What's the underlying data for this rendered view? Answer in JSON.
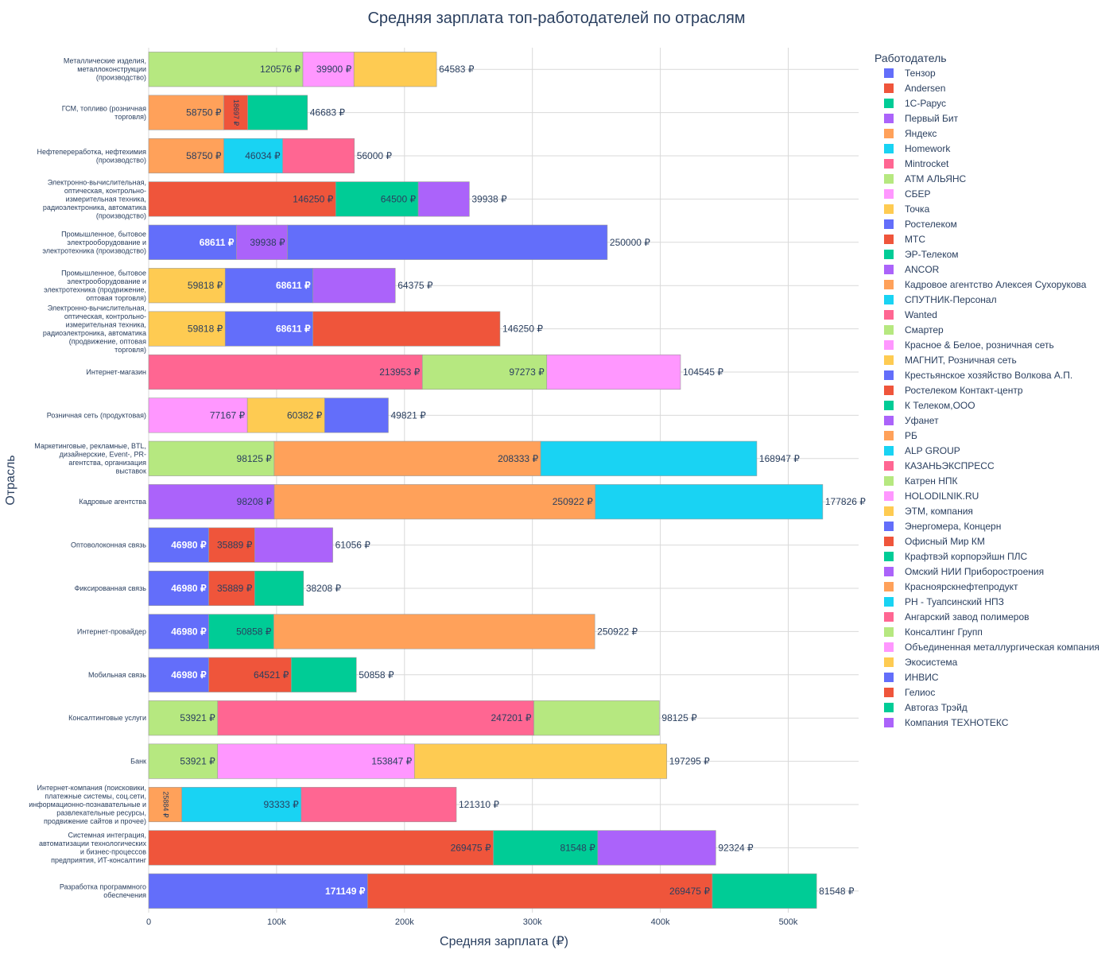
{
  "chart_data": {
    "type": "bar",
    "orientation": "horizontal",
    "barmode": "stack",
    "title": "Средняя зарплата топ-работодателей по отраслям",
    "xlabel": "Средняя зарплата (₽)",
    "ylabel": "Отрасль",
    "xlim": [
      0,
      555000
    ],
    "x_ticks": [
      {
        "value": 0,
        "label": "0"
      },
      {
        "value": 100000,
        "label": "100k"
      },
      {
        "value": 200000,
        "label": "200k"
      },
      {
        "value": 300000,
        "label": "300k"
      },
      {
        "value": 400000,
        "label": "400k"
      },
      {
        "value": 500000,
        "label": "500k"
      }
    ],
    "grid": true,
    "legend_title": "Работодатель",
    "legend_position": "right",
    "currency_suffix": " ₽",
    "employers": [
      {
        "name": "Тензор",
        "color": "#636efa"
      },
      {
        "name": "Andersen",
        "color": "#EF553B"
      },
      {
        "name": "1С-Рарус",
        "color": "#00cc96"
      },
      {
        "name": "Первый Бит",
        "color": "#ab63fa"
      },
      {
        "name": "Яндекс",
        "color": "#FFA15A"
      },
      {
        "name": "Homework",
        "color": "#19d3f3"
      },
      {
        "name": "Mintrocket",
        "color": "#FF6692"
      },
      {
        "name": "АТМ АЛЬЯНС",
        "color": "#B6E880"
      },
      {
        "name": "СБЕР",
        "color": "#FF97FF"
      },
      {
        "name": "Точка",
        "color": "#FECB52"
      },
      {
        "name": "Ростелеком",
        "color": "#636efa"
      },
      {
        "name": "МТС",
        "color": "#EF553B"
      },
      {
        "name": "ЭР-Телеком",
        "color": "#00cc96"
      },
      {
        "name": "ANCOR",
        "color": "#ab63fa"
      },
      {
        "name": "Кадровое агентство Алексея Сухорукова",
        "color": "#FFA15A"
      },
      {
        "name": "СПУТНИК-Персонал",
        "color": "#19d3f3"
      },
      {
        "name": "Wanted",
        "color": "#FF6692"
      },
      {
        "name": "Смартер",
        "color": "#B6E880"
      },
      {
        "name": "Красное & Белое, розничная сеть",
        "color": "#FF97FF"
      },
      {
        "name": "МАГНИТ, Розничная сеть",
        "color": "#FECB52"
      },
      {
        "name": "Крестьянское хозяйство Волкова А.П.",
        "color": "#636efa"
      },
      {
        "name": "Ростелеком Контакт-центр",
        "color": "#EF553B"
      },
      {
        "name": "К Телеком,ООО",
        "color": "#00cc96"
      },
      {
        "name": "Уфанет",
        "color": "#ab63fa"
      },
      {
        "name": "РБ",
        "color": "#FFA15A"
      },
      {
        "name": "ALP GROUP",
        "color": "#19d3f3"
      },
      {
        "name": "КАЗАНЬЭКСПРЕСС",
        "color": "#FF6692"
      },
      {
        "name": "Катрен НПК",
        "color": "#B6E880"
      },
      {
        "name": "HOLODILNIK.RU",
        "color": "#FF97FF"
      },
      {
        "name": "ЭТМ, компания",
        "color": "#FECB52"
      },
      {
        "name": "Энергомера, Концерн",
        "color": "#636efa"
      },
      {
        "name": "Офисный Мир КМ",
        "color": "#EF553B"
      },
      {
        "name": "Крафтвэй корпорэйшн ПЛС",
        "color": "#00cc96"
      },
      {
        "name": "Омский НИИ Приборостроения",
        "color": "#ab63fa"
      },
      {
        "name": "Красноярскнефтепродукт",
        "color": "#FFA15A"
      },
      {
        "name": "РН - Туапсинский НПЗ",
        "color": "#19d3f3"
      },
      {
        "name": "Ангарский завод полимеров",
        "color": "#FF6692"
      },
      {
        "name": "Консалтинг Групп",
        "color": "#B6E880"
      },
      {
        "name": "Объединенная металлургическая компания",
        "color": "#FF97FF"
      },
      {
        "name": "Экосистема",
        "color": "#FECB52"
      },
      {
        "name": "ИНВИС",
        "color": "#636efa"
      },
      {
        "name": "Гелиос",
        "color": "#EF553B"
      },
      {
        "name": "Автогаз Трэйд",
        "color": "#00cc96"
      },
      {
        "name": "Компания ТЕХНОТЕКС",
        "color": "#ab63fa"
      }
    ],
    "categories": [
      {
        "label": [
          "Металлические изделия,",
          "металлоконструкции",
          "(производство)"
        ],
        "segments": [
          {
            "employer": "Консалтинг Групп",
            "value": 120576
          },
          {
            "employer": "Объединенная металлургическая компания",
            "value": 39900
          },
          {
            "employer": "Экосистема",
            "value": 64583
          }
        ]
      },
      {
        "label": [
          "ГСМ, топливо (розничная",
          "торговля)"
        ],
        "segments": [
          {
            "employer": "Красноярскнефтепродукт",
            "value": 58750
          },
          {
            "employer": "Гелиос",
            "value": 18697
          },
          {
            "employer": "Автогаз Трэйд",
            "value": 46683
          }
        ]
      },
      {
        "label": [
          "Нефтепереработка, нефтехимия",
          "(производство)"
        ],
        "segments": [
          {
            "employer": "Красноярскнефтепродукт",
            "value": 58750
          },
          {
            "employer": "РН - Туапсинский НПЗ",
            "value": 46034
          },
          {
            "employer": "Ангарский завод полимеров",
            "value": 56000
          }
        ]
      },
      {
        "label": [
          "Электронно-вычислительная,",
          "оптическая, контрольно-",
          "измерительная техника,",
          "радиоэлектроника, автоматика",
          "(производство)"
        ],
        "segments": [
          {
            "employer": "Офисный Мир КМ",
            "value": 146250
          },
          {
            "employer": "Крафтвэй корпорэйшн ПЛС",
            "value": 64500
          },
          {
            "employer": "Омский НИИ Приборостроения",
            "value": 39938
          }
        ]
      },
      {
        "label": [
          "Промышленное, бытовое",
          "электрооборудование и",
          "электротехника (производство)"
        ],
        "segments": [
          {
            "employer": "Энергомера, Концерн",
            "value": 68611
          },
          {
            "employer": "Омский НИИ Приборостроения",
            "value": 39938
          },
          {
            "employer": "ИНВИС",
            "value": 250000
          }
        ]
      },
      {
        "label": [
          "Промышленное, бытовое",
          "электрооборудование и",
          "электротехника (продвижение,",
          "оптовая торговля)"
        ],
        "segments": [
          {
            "employer": "ЭТМ, компания",
            "value": 59818
          },
          {
            "employer": "Энергомера, Концерн",
            "value": 68611
          },
          {
            "employer": "Компания ТЕХНОТЕКС",
            "value": 64375
          }
        ]
      },
      {
        "label": [
          "Электронно-вычислительная,",
          "оптическая, контрольно-",
          "измерительная техника,",
          "радиоэлектроника, автоматика",
          "(продвижение, оптовая",
          "торговля)"
        ],
        "segments": [
          {
            "employer": "ЭТМ, компания",
            "value": 59818
          },
          {
            "employer": "Энергомера, Концерн",
            "value": 68611
          },
          {
            "employer": "Офисный Мир КМ",
            "value": 146250
          }
        ]
      },
      {
        "label": [
          "Интернет-магазин"
        ],
        "segments": [
          {
            "employer": "КАЗАНЬЭКСПРЕСС",
            "value": 213953
          },
          {
            "employer": "Катрен НПК",
            "value": 97273
          },
          {
            "employer": "HOLODILNIK.RU",
            "value": 104545
          }
        ]
      },
      {
        "label": [
          "Розничная сеть (продуктовая)"
        ],
        "segments": [
          {
            "employer": "Красное & Белое, розничная сеть",
            "value": 77167
          },
          {
            "employer": "МАГНИТ, Розничная сеть",
            "value": 60382
          },
          {
            "employer": "Крестьянское хозяйство Волкова А.П.",
            "value": 49821
          }
        ]
      },
      {
        "label": [
          "Маркетинговые, рекламные, BTL,",
          "дизайнерские, Event-, PR-",
          "агентства, организация",
          "выставок"
        ],
        "segments": [
          {
            "employer": "Смартер",
            "value": 98125
          },
          {
            "employer": "РБ",
            "value": 208333
          },
          {
            "employer": "ALP GROUP",
            "value": 168947
          }
        ]
      },
      {
        "label": [
          "Кадровые агентства"
        ],
        "segments": [
          {
            "employer": "ANCOR",
            "value": 98208
          },
          {
            "employer": "Кадровое агентство Алексея Сухорукова",
            "value": 250922
          },
          {
            "employer": "СПУТНИК-Персонал",
            "value": 177826
          }
        ]
      },
      {
        "label": [
          "Оптоволоконная связь"
        ],
        "segments": [
          {
            "employer": "Ростелеком",
            "value": 46980
          },
          {
            "employer": "Ростелеком Контакт-центр",
            "value": 35889
          },
          {
            "employer": "Уфанет",
            "value": 61056
          }
        ]
      },
      {
        "label": [
          "Фиксированная связь"
        ],
        "segments": [
          {
            "employer": "Ростелеком",
            "value": 46980
          },
          {
            "employer": "Ростелеком Контакт-центр",
            "value": 35889
          },
          {
            "employer": "К Телеком,ООО",
            "value": 38208
          }
        ]
      },
      {
        "label": [
          "Интернет-провайдер"
        ],
        "segments": [
          {
            "employer": "Ростелеком",
            "value": 46980
          },
          {
            "employer": "ЭР-Телеком",
            "value": 50858
          },
          {
            "employer": "Кадровое агентство Алексея Сухорукова",
            "value": 250922
          }
        ]
      },
      {
        "label": [
          "Мобильная связь"
        ],
        "segments": [
          {
            "employer": "Ростелеком",
            "value": 46980
          },
          {
            "employer": "МТС",
            "value": 64521
          },
          {
            "employer": "ЭР-Телеком",
            "value": 50858
          }
        ]
      },
      {
        "label": [
          "Консалтинговые услуги"
        ],
        "segments": [
          {
            "employer": "АТМ АЛЬЯНС",
            "value": 53921
          },
          {
            "employer": "Wanted",
            "value": 247201
          },
          {
            "employer": "Смартер",
            "value": 98125
          }
        ]
      },
      {
        "label": [
          "Банк"
        ],
        "segments": [
          {
            "employer": "АТМ АЛЬЯНС",
            "value": 53921
          },
          {
            "employer": "СБЕР",
            "value": 153847
          },
          {
            "employer": "Точка",
            "value": 197295
          }
        ]
      },
      {
        "label": [
          "Интернет-компания (поисковики,",
          "платежные системы, соц.сети,",
          "информационно-познавательные и",
          "развлекательные ресурсы,",
          "продвижение сайтов и прочее)"
        ],
        "segments": [
          {
            "employer": "Яндекс",
            "value": 25884
          },
          {
            "employer": "Homework",
            "value": 93333
          },
          {
            "employer": "Mintrocket",
            "value": 121310
          }
        ]
      },
      {
        "label": [
          "Системная интеграция,",
          "автоматизации технологических",
          "и бизнес-процессов",
          "предприятия, ИТ-консалтинг"
        ],
        "segments": [
          {
            "employer": "Andersen",
            "value": 269475
          },
          {
            "employer": "1С-Рарус",
            "value": 81548
          },
          {
            "employer": "Первый Бит",
            "value": 92324
          }
        ]
      },
      {
        "label": [
          "Разработка программного",
          "обеспечения"
        ],
        "segments": [
          {
            "employer": "Тензор",
            "value": 171149
          },
          {
            "employer": "Andersen",
            "value": 269475
          },
          {
            "employer": "1С-Рарус",
            "value": 81548
          }
        ]
      }
    ]
  }
}
